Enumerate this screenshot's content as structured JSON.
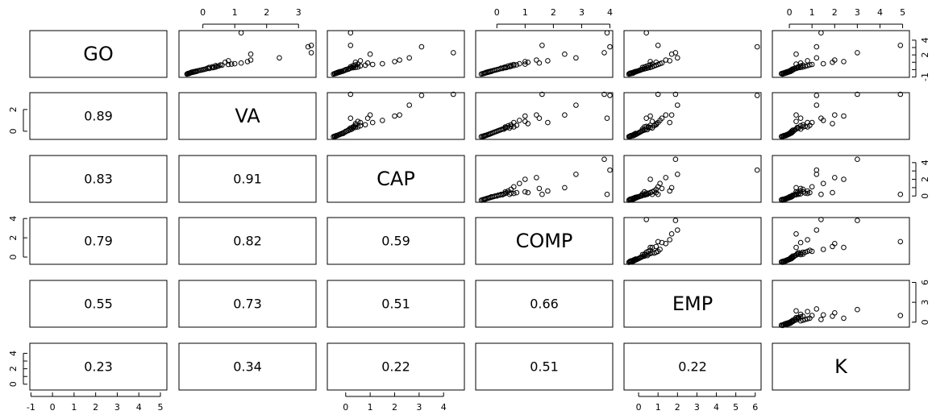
{
  "chart_data": {
    "type": "scatter-matrix",
    "variables": [
      "GO",
      "VA",
      "CAP",
      "COMP",
      "EMP",
      "K"
    ],
    "correlations": [
      {
        "row": 1,
        "col": 0,
        "value": "0.89"
      },
      {
        "row": 2,
        "col": 0,
        "value": "0.83"
      },
      {
        "row": 2,
        "col": 1,
        "value": "0.91"
      },
      {
        "row": 3,
        "col": 0,
        "value": "0.79"
      },
      {
        "row": 3,
        "col": 1,
        "value": "0.82"
      },
      {
        "row": 3,
        "col": 2,
        "value": "0.59"
      },
      {
        "row": 4,
        "col": 0,
        "value": "0.55"
      },
      {
        "row": 4,
        "col": 1,
        "value": "0.73"
      },
      {
        "row": 4,
        "col": 2,
        "value": "0.51"
      },
      {
        "row": 4,
        "col": 3,
        "value": "0.66"
      },
      {
        "row": 5,
        "col": 0,
        "value": "0.23"
      },
      {
        "row": 5,
        "col": 1,
        "value": "0.34"
      },
      {
        "row": 5,
        "col": 2,
        "value": "0.22"
      },
      {
        "row": 5,
        "col": 3,
        "value": "0.51"
      },
      {
        "row": 5,
        "col": 4,
        "value": "0.22"
      }
    ],
    "axis_ranges": {
      "GO": [
        -1.05,
        5.3
      ],
      "VA": [
        -0.75,
        3.55
      ],
      "CAP": [
        -0.75,
        4.85
      ],
      "COMP": [
        -0.75,
        4.1
      ],
      "EMP": [
        -0.75,
        6.3
      ],
      "K": [
        -0.75,
        5.3
      ]
    },
    "axis_ticks": {
      "GO": [
        -1,
        0,
        1,
        2,
        3,
        4,
        5
      ],
      "VA": [
        0,
        1,
        2,
        3
      ],
      "CAP": [
        0,
        1,
        2,
        3,
        4
      ],
      "COMP": [
        0,
        1,
        2,
        3,
        4
      ],
      "EMP": [
        0,
        1,
        2,
        3,
        4,
        5,
        6
      ],
      "K": [
        0,
        1,
        2,
        3,
        4,
        5
      ]
    },
    "axis_tick_labels": {
      "GO": [
        "-1",
        "0",
        "1",
        "2",
        "3",
        "4",
        "5"
      ],
      "VA": [
        "0",
        "1",
        "2",
        "3"
      ],
      "CAP": [
        "0",
        "1",
        "2",
        "3",
        "4"
      ],
      "COMP": [
        "0",
        "1",
        "2",
        "3",
        "4"
      ],
      "EMP": [
        "0",
        "1",
        "2",
        "3",
        "4",
        "5",
        "6"
      ],
      "K": [
        "0",
        "1",
        "2",
        "3",
        "4",
        "5"
      ]
    },
    "left_axis_ticks": {
      "VA": [
        0,
        2
      ],
      "COMP": [
        0,
        2,
        4
      ],
      "K": [
        0,
        1,
        2,
        3,
        4
      ]
    },
    "left_axis_tick_labels": {
      "VA": [
        "0",
        "2"
      ],
      "COMP": [
        "0",
        "2",
        "4"
      ],
      "K": [
        "0",
        "2",
        "4"
      ]
    },
    "right_axis_ticks": {
      "GO": [
        -1,
        0,
        1,
        2,
        3,
        4
      ],
      "CAP": [
        0,
        1,
        2,
        3,
        4
      ],
      "EMP": [
        0,
        3,
        6
      ]
    },
    "right_axis_tick_labels": {
      "GO": [
        "-1",
        "2",
        "4"
      ],
      "CAP": [
        "0",
        "2",
        "4"
      ],
      "EMP": [
        "0",
        "3",
        "6"
      ]
    },
    "observations": [
      {
        "GO": -0.6,
        "VA": -0.5,
        "CAP": -0.5,
        "COMP": -0.55,
        "EMP": -0.5,
        "K": -0.3
      },
      {
        "GO": -0.55,
        "VA": -0.48,
        "CAP": -0.45,
        "COMP": -0.5,
        "EMP": -0.45,
        "K": -0.35
      },
      {
        "GO": -0.55,
        "VA": -0.45,
        "CAP": -0.45,
        "COMP": -0.5,
        "EMP": -0.4,
        "K": -0.25
      },
      {
        "GO": -0.5,
        "VA": -0.45,
        "CAP": -0.4,
        "COMP": -0.45,
        "EMP": -0.45,
        "K": -0.3
      },
      {
        "GO": -0.5,
        "VA": -0.42,
        "CAP": -0.4,
        "COMP": -0.45,
        "EMP": -0.3,
        "K": -0.2
      },
      {
        "GO": -0.45,
        "VA": -0.4,
        "CAP": -0.38,
        "COMP": -0.42,
        "EMP": -0.35,
        "K": -0.25
      },
      {
        "GO": -0.45,
        "VA": -0.4,
        "CAP": -0.35,
        "COMP": -0.4,
        "EMP": -0.4,
        "K": -0.15
      },
      {
        "GO": -0.4,
        "VA": -0.38,
        "CAP": -0.35,
        "COMP": -0.4,
        "EMP": -0.25,
        "K": -0.2
      },
      {
        "GO": -0.4,
        "VA": -0.35,
        "CAP": -0.3,
        "COMP": -0.35,
        "EMP": -0.3,
        "K": -0.1
      },
      {
        "GO": -0.35,
        "VA": -0.35,
        "CAP": -0.3,
        "COMP": -0.35,
        "EMP": -0.2,
        "K": -0.15
      },
      {
        "GO": -0.35,
        "VA": -0.3,
        "CAP": -0.25,
        "COMP": -0.3,
        "EMP": -0.25,
        "K": -0.05
      },
      {
        "GO": -0.3,
        "VA": -0.3,
        "CAP": -0.25,
        "COMP": -0.3,
        "EMP": -0.15,
        "K": -0.1
      },
      {
        "GO": -0.3,
        "VA": -0.25,
        "CAP": -0.2,
        "COMP": -0.25,
        "EMP": -0.2,
        "K": 0.0
      },
      {
        "GO": -0.25,
        "VA": -0.25,
        "CAP": -0.2,
        "COMP": -0.25,
        "EMP": -0.1,
        "K": -0.05
      },
      {
        "GO": -0.25,
        "VA": -0.2,
        "CAP": -0.15,
        "COMP": -0.2,
        "EMP": -0.15,
        "K": 0.05
      },
      {
        "GO": -0.2,
        "VA": -0.2,
        "CAP": -0.1,
        "COMP": -0.2,
        "EMP": -0.05,
        "K": 0.0
      },
      {
        "GO": -0.15,
        "VA": -0.15,
        "CAP": -0.1,
        "COMP": -0.15,
        "EMP": 0.0,
        "K": 0.1
      },
      {
        "GO": -0.1,
        "VA": -0.1,
        "CAP": -0.05,
        "COMP": -0.1,
        "EMP": 0.05,
        "K": 0.05
      },
      {
        "GO": -0.05,
        "VA": -0.05,
        "CAP": 0.0,
        "COMP": -0.05,
        "EMP": 0.1,
        "K": 0.15
      },
      {
        "GO": 0.0,
        "VA": 0.0,
        "CAP": 0.0,
        "COMP": 0.0,
        "EMP": 0.15,
        "K": 0.1
      },
      {
        "GO": 0.05,
        "VA": 0.05,
        "CAP": 0.1,
        "COMP": 0.05,
        "EMP": 0.2,
        "K": 0.2
      },
      {
        "GO": 0.1,
        "VA": 0.1,
        "CAP": 0.1,
        "COMP": 0.1,
        "EMP": 0.3,
        "K": 0.15
      },
      {
        "GO": 0.15,
        "VA": 0.2,
        "CAP": 0.15,
        "COMP": 0.2,
        "EMP": 0.35,
        "K": 0.3
      },
      {
        "GO": 0.2,
        "VA": 0.15,
        "CAP": 0.2,
        "COMP": 0.15,
        "EMP": 0.45,
        "K": 0.25
      },
      {
        "GO": 0.25,
        "VA": 0.3,
        "CAP": 0.3,
        "COMP": 0.3,
        "EMP": 0.5,
        "K": 0.4
      },
      {
        "GO": 0.3,
        "VA": 0.2,
        "CAP": 0.25,
        "COMP": 0.25,
        "EMP": 0.2,
        "K": 0.5
      },
      {
        "GO": 0.3,
        "VA": 0.35,
        "CAP": 0.4,
        "COMP": 0.35,
        "EMP": 0.6,
        "K": 0.35
      },
      {
        "GO": 0.35,
        "VA": 0.4,
        "CAP": 0.5,
        "COMP": 0.3,
        "EMP": 0.3,
        "K": 0.6
      },
      {
        "GO": 0.4,
        "VA": 0.3,
        "CAP": 0.2,
        "COMP": 0.45,
        "EMP": 0.7,
        "K": 0.4
      },
      {
        "GO": 0.45,
        "VA": 0.45,
        "CAP": 0.35,
        "COMP": 0.5,
        "EMP": 0.4,
        "K": 0.7
      },
      {
        "GO": 0.5,
        "VA": 0.5,
        "CAP": 0.6,
        "COMP": 0.4,
        "EMP": 0.8,
        "K": 0.5
      },
      {
        "GO": 0.55,
        "VA": 0.4,
        "CAP": 0.3,
        "COMP": 0.6,
        "EMP": 0.5,
        "K": 0.8
      },
      {
        "GO": 0.6,
        "VA": 0.6,
        "CAP": 0.8,
        "COMP": 0.5,
        "EMP": 0.9,
        "K": 0.6
      },
      {
        "GO": 0.65,
        "VA": 0.55,
        "CAP": 0.4,
        "COMP": 0.7,
        "EMP": 0.6,
        "K": 0.9
      },
      {
        "GO": 0.7,
        "VA": 0.8,
        "CAP": 1.1,
        "COMP": 0.6,
        "EMP": 1.0,
        "K": 1.0
      },
      {
        "GO": 0.75,
        "VA": 0.9,
        "CAP": 0.5,
        "COMP": 1.0,
        "EMP": 0.7,
        "K": 0.3
      },
      {
        "GO": 0.8,
        "VA": 1.0,
        "CAP": 1.5,
        "COMP": 0.8,
        "EMP": 1.1,
        "K": 1.5
      },
      {
        "GO": 0.9,
        "VA": 1.2,
        "CAP": 0.9,
        "COMP": 1.5,
        "EMP": 1.2,
        "K": 0.5
      },
      {
        "GO": 1.0,
        "VA": 0.7,
        "CAP": 0.4,
        "COMP": 1.1,
        "EMP": 0.9,
        "K": 1.9
      },
      {
        "GO": 1.1,
        "VA": 1.4,
        "CAP": 2.0,
        "COMP": 1.0,
        "EMP": 0.6,
        "K": 2.4
      },
      {
        "GO": 1.2,
        "VA": 0.8,
        "CAP": 0.6,
        "COMP": 1.8,
        "EMP": 1.6,
        "K": 0.8
      },
      {
        "GO": 1.3,
        "VA": 1.5,
        "CAP": 2.2,
        "COMP": 1.4,
        "EMP": 1.4,
        "K": 2.0
      },
      {
        "GO": 1.6,
        "VA": 2.4,
        "CAP": 2.6,
        "COMP": 2.8,
        "EMP": 2.0,
        "K": 1.2
      },
      {
        "GO": 2.1,
        "VA": 1.5,
        "CAP": 1.0,
        "COMP": 2.4,
        "EMP": 1.7,
        "K": 0.3
      },
      {
        "GO": 2.3,
        "VA": 3.4,
        "CAP": 4.4,
        "COMP": 3.8,
        "EMP": 1.9,
        "K": 3.0
      },
      {
        "GO": 3.1,
        "VA": 3.3,
        "CAP": 3.1,
        "COMP": 4.0,
        "EMP": 6.1,
        "K": 1.2
      },
      {
        "GO": 3.3,
        "VA": 3.4,
        "CAP": 0.2,
        "COMP": 1.6,
        "EMP": 1.0,
        "K": 4.9
      },
      {
        "GO": 5.0,
        "VA": 1.2,
        "CAP": 0.2,
        "COMP": 3.9,
        "EMP": 0.4,
        "K": 1.4
      }
    ]
  }
}
